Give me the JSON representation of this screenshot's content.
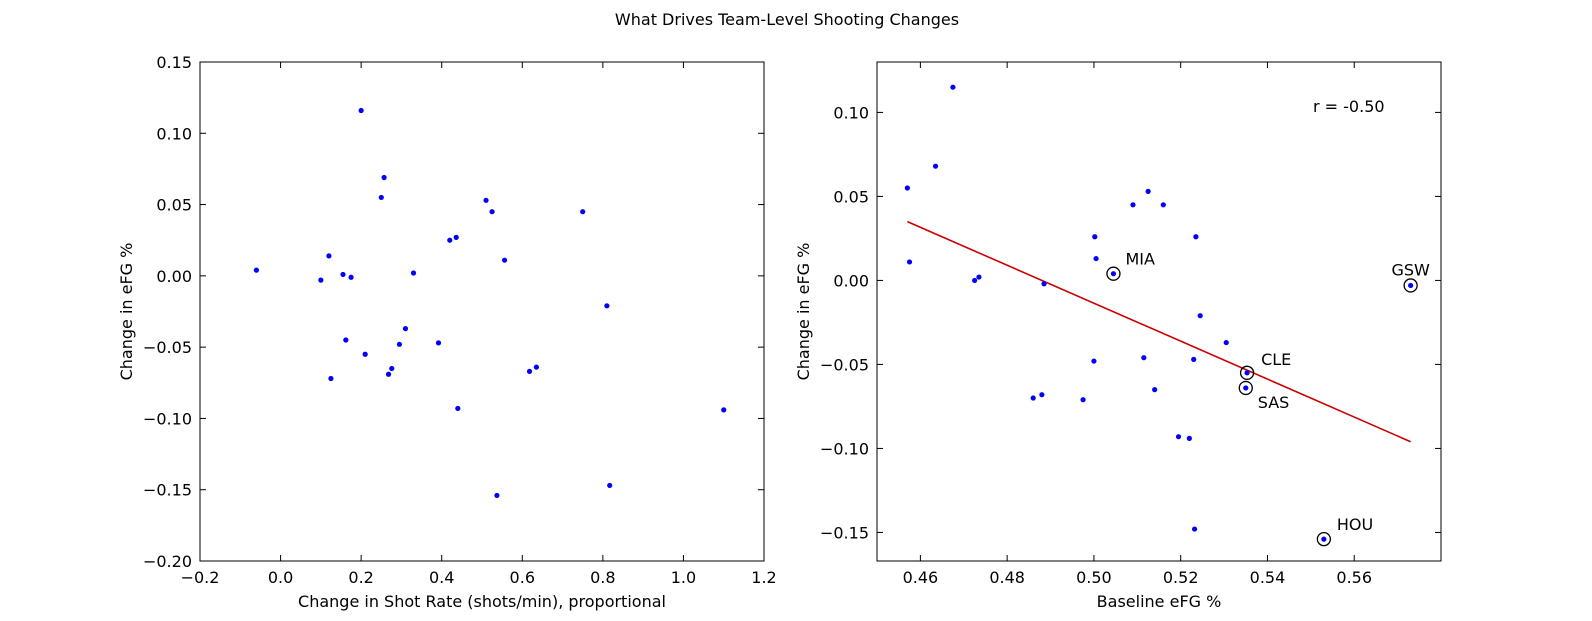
{
  "figure": {
    "suptitle": "What Drives Team-Level Shooting Changes",
    "colors": {
      "points": "#0000ff",
      "fit_line": "#cc0000",
      "axes": "#000000",
      "background": "#ffffff"
    }
  },
  "chart_data": [
    {
      "type": "scatter",
      "title": "",
      "xlabel": "Change in Shot Rate (shots/min), proportional",
      "ylabel": "Change in eFG %",
      "xlim": [
        -0.2,
        1.2
      ],
      "ylim": [
        -0.2,
        0.15
      ],
      "xticks": [
        -0.2,
        0.0,
        0.2,
        0.4,
        0.6,
        0.8,
        1.0,
        1.2
      ],
      "xtick_labels": [
        "−0.2",
        "0.0",
        "0.2",
        "0.4",
        "0.6",
        "0.8",
        "1.0",
        "1.2"
      ],
      "yticks": [
        -0.2,
        -0.15,
        -0.1,
        -0.05,
        0.0,
        0.05,
        0.1,
        0.15
      ],
      "ytick_labels": [
        "−0.20",
        "−0.15",
        "−0.10",
        "−0.05",
        "0.00",
        "0.05",
        "0.10",
        "0.15"
      ],
      "grid": false,
      "points": [
        {
          "x": -0.06,
          "y": 0.004
        },
        {
          "x": 0.1,
          "y": -0.003
        },
        {
          "x": 0.12,
          "y": 0.014
        },
        {
          "x": 0.125,
          "y": -0.072
        },
        {
          "x": 0.155,
          "y": 0.001
        },
        {
          "x": 0.162,
          "y": -0.045
        },
        {
          "x": 0.175,
          "y": -0.001
        },
        {
          "x": 0.2,
          "y": 0.116
        },
        {
          "x": 0.21,
          "y": -0.055
        },
        {
          "x": 0.25,
          "y": 0.055
        },
        {
          "x": 0.257,
          "y": 0.069
        },
        {
          "x": 0.268,
          "y": -0.069
        },
        {
          "x": 0.276,
          "y": -0.065
        },
        {
          "x": 0.295,
          "y": -0.048
        },
        {
          "x": 0.31,
          "y": -0.037
        },
        {
          "x": 0.33,
          "y": 0.002
        },
        {
          "x": 0.392,
          "y": -0.047
        },
        {
          "x": 0.42,
          "y": 0.025
        },
        {
          "x": 0.436,
          "y": 0.027
        },
        {
          "x": 0.44,
          "y": -0.093
        },
        {
          "x": 0.51,
          "y": 0.053
        },
        {
          "x": 0.525,
          "y": 0.045
        },
        {
          "x": 0.537,
          "y": -0.154
        },
        {
          "x": 0.556,
          "y": 0.011
        },
        {
          "x": 0.618,
          "y": -0.067
        },
        {
          "x": 0.635,
          "y": -0.064
        },
        {
          "x": 0.75,
          "y": 0.045
        },
        {
          "x": 0.81,
          "y": -0.021
        },
        {
          "x": 0.817,
          "y": -0.147
        },
        {
          "x": 1.1,
          "y": -0.094
        }
      ]
    },
    {
      "type": "scatter",
      "title": "",
      "xlabel": "Baseline eFG %",
      "ylabel": "Change in eFG %",
      "xlim": [
        0.45,
        0.58
      ],
      "ylim": [
        -0.167,
        0.13
      ],
      "xticks": [
        0.46,
        0.48,
        0.5,
        0.52,
        0.54,
        0.56
      ],
      "xtick_labels": [
        "0.46",
        "0.48",
        "0.50",
        "0.52",
        "0.54",
        "0.56"
      ],
      "yticks": [
        -0.15,
        -0.1,
        -0.05,
        0.0,
        0.05,
        0.1
      ],
      "ytick_labels": [
        "−0.15",
        "−0.10",
        "−0.05",
        "0.00",
        "0.05",
        "0.10"
      ],
      "grid": false,
      "annotation": "r = -0.50",
      "fit_line": {
        "x": [
          0.457,
          0.573
        ],
        "y": [
          0.035,
          -0.096
        ]
      },
      "points": [
        {
          "x": 0.457,
          "y": 0.055
        },
        {
          "x": 0.4575,
          "y": 0.011
        },
        {
          "x": 0.4635,
          "y": 0.068
        },
        {
          "x": 0.4675,
          "y": 0.115
        },
        {
          "x": 0.4725,
          "y": 0.0
        },
        {
          "x": 0.4735,
          "y": 0.002
        },
        {
          "x": 0.486,
          "y": -0.07
        },
        {
          "x": 0.488,
          "y": -0.068
        },
        {
          "x": 0.4885,
          "y": -0.002
        },
        {
          "x": 0.4975,
          "y": -0.071
        },
        {
          "x": 0.5,
          "y": -0.048
        },
        {
          "x": 0.5002,
          "y": 0.026
        },
        {
          "x": 0.5005,
          "y": 0.013
        },
        {
          "x": 0.5045,
          "y": 0.004,
          "label": "MIA"
        },
        {
          "x": 0.509,
          "y": 0.045
        },
        {
          "x": 0.5115,
          "y": -0.046
        },
        {
          "x": 0.5125,
          "y": 0.053
        },
        {
          "x": 0.514,
          "y": -0.065
        },
        {
          "x": 0.516,
          "y": 0.045
        },
        {
          "x": 0.5195,
          "y": -0.093
        },
        {
          "x": 0.522,
          "y": -0.094
        },
        {
          "x": 0.523,
          "y": -0.047
        },
        {
          "x": 0.5232,
          "y": -0.148
        },
        {
          "x": 0.5235,
          "y": 0.026
        },
        {
          "x": 0.5245,
          "y": -0.021
        },
        {
          "x": 0.5305,
          "y": -0.037
        },
        {
          "x": 0.535,
          "y": -0.064,
          "label": "SAS"
        },
        {
          "x": 0.5353,
          "y": -0.055,
          "label": "CLE"
        },
        {
          "x": 0.553,
          "y": -0.154,
          "label": "HOU"
        },
        {
          "x": 0.573,
          "y": -0.003,
          "label": "GSW"
        }
      ]
    }
  ]
}
